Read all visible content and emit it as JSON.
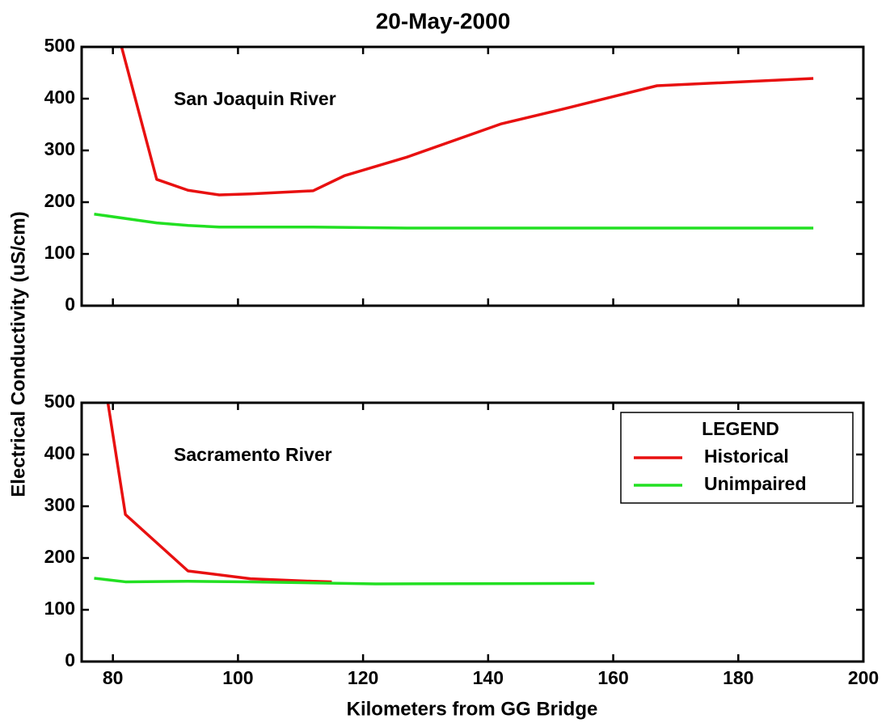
{
  "chart_data": [
    {
      "type": "line",
      "title": "20-May-2000",
      "ylabel": "Electrical Conductivity (uS/cm)",
      "annotation": "San Joaquin River",
      "xlim": [
        75,
        200
      ],
      "xticks": [
        80,
        100,
        120,
        140,
        160,
        180,
        200
      ],
      "ylim": [
        0,
        500
      ],
      "yticks": [
        0,
        100,
        200,
        300,
        400,
        500
      ],
      "series": [
        {
          "name": "Historical",
          "color": "#e81010",
          "x": [
            77,
            87,
            92,
            97,
            102,
            112,
            117,
            127,
            142,
            152,
            167,
            192
          ],
          "values": [
            700,
            244,
            223,
            214,
            216,
            222,
            251,
            287,
            351,
            380,
            425,
            439
          ]
        },
        {
          "name": "Unimpaired",
          "color": "#22e022",
          "x": [
            77,
            87,
            92,
            97,
            112,
            127,
            142,
            192
          ],
          "values": [
            177,
            160,
            155,
            152,
            152,
            150,
            150,
            150
          ]
        }
      ]
    },
    {
      "type": "line",
      "xlabel": "Kilometers from GG Bridge",
      "annotation": "Sacramento River",
      "legend_title": "LEGEND",
      "legend": "upper right",
      "xlim": [
        75,
        200
      ],
      "xticks": [
        80,
        100,
        120,
        140,
        160,
        180,
        200
      ],
      "ylim": [
        0,
        500
      ],
      "yticks": [
        0,
        100,
        200,
        300,
        400,
        500
      ],
      "series": [
        {
          "name": "Historical",
          "color": "#e81010",
          "x": [
            77,
            82,
            92,
            102,
            112,
            115
          ],
          "values": [
            670,
            284,
            175,
            160,
            155,
            154
          ]
        },
        {
          "name": "Unimpaired",
          "color": "#22e022",
          "x": [
            77,
            82,
            92,
            102,
            112,
            122,
            157
          ],
          "values": [
            161,
            154,
            155,
            154,
            152,
            150,
            151
          ]
        }
      ]
    }
  ]
}
